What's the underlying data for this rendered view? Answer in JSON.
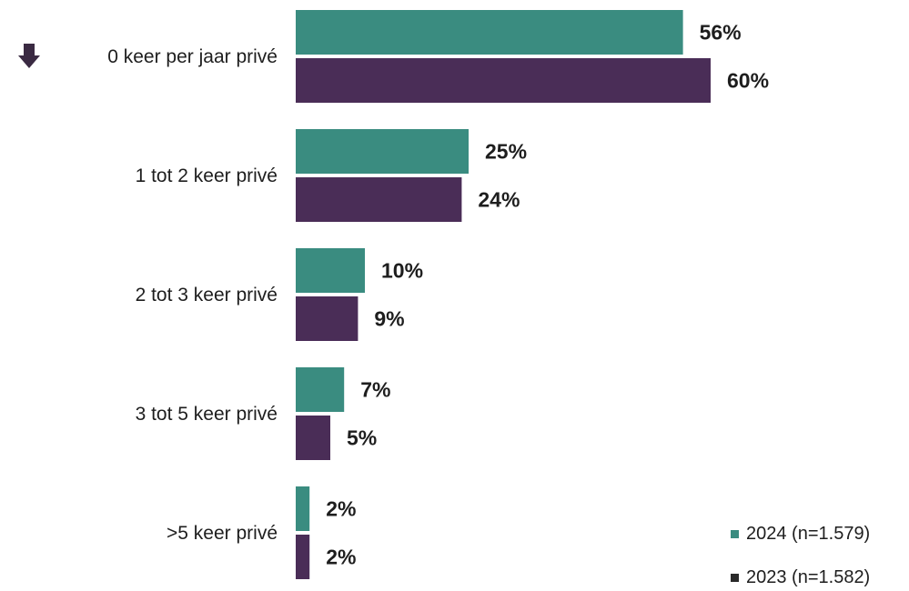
{
  "chart_data": {
    "type": "bar",
    "orientation": "horizontal",
    "categories": [
      "0 keer per jaar privé",
      "1 tot 2 keer privé",
      "2 tot 3 keer privé",
      "3 tot 5 keer privé",
      ">5 keer privé"
    ],
    "series": [
      {
        "name": "2024 (n=1.579)",
        "color": "#3a8c80",
        "values": [
          56,
          25,
          10,
          7,
          2
        ]
      },
      {
        "name": "2023 (n=1.582)",
        "color": "#4a2d57",
        "values": [
          60,
          24,
          9,
          5,
          2
        ]
      }
    ],
    "value_suffix": "%",
    "xlim": [
      0,
      100
    ],
    "grid": false,
    "legend": "bottom-right",
    "annotations": [
      {
        "category": "0 keer per jaar privé",
        "icon": "down-arrow-icon",
        "color": "#3a2a42"
      }
    ]
  }
}
